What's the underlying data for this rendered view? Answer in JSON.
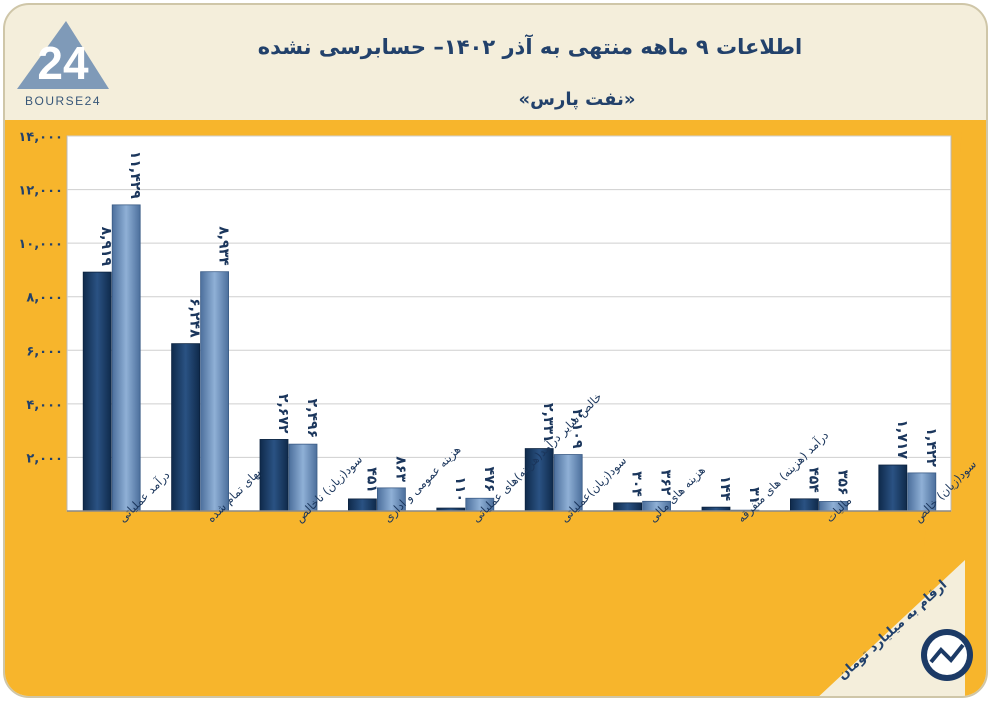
{
  "header": {
    "title": "اطلاعات ۹ ماهه منتهی به آذر ۱۴۰۲– حسابرسی نشده",
    "subtitle": "«نفت پارس»",
    "logo_text": "BOURSE24",
    "logo_mark": "24",
    "footnote": "ارقام به میلیارد تومان"
  },
  "colors": {
    "plot_background": "#f7b52c",
    "series_dark": "#173a63",
    "series_light": "#6e8fb9",
    "text": "#22416b"
  },
  "chart_data": {
    "type": "bar",
    "categories": [
      "درآمد عملیاتی",
      "بهای تمام شده",
      "سود(زیان) ناخالص",
      "هزینه عمومی و اداری",
      "خالص سایر درآمد(هزینه)های عملیاتی",
      "سود(زیان)عملیاتی",
      "هزینه های مالی",
      "درآمد (هزینه) های متفرقه",
      "مالیات",
      "سود(زیان) خالص"
    ],
    "series": [
      {
        "values": [
          8919,
          6248,
          2672,
          451,
          110,
          2331,
          304,
          144,
          454,
          1717
        ],
        "labels": [
          "۸,۹۱۹",
          "۶,۲۴۸",
          "۲,۶۷۲",
          "۴۵۱",
          "۱۱۰",
          "۲,۳۳۱",
          "۳۰۴",
          "۱۴۴",
          "۴۵۴",
          "۱,۷۱۷"
        ]
      },
      {
        "values": [
          11429,
          8934,
          2496,
          863,
          476,
          2109,
          362,
          31,
          356,
          1422
        ],
        "labels": [
          "۱۱,۴۲۹",
          "۸,۹۳۴",
          "۲,۴۹۶",
          "۸۶۳",
          "۴۷۶",
          "۲,۱۰۹",
          "۳۶۲",
          "۳۱",
          "۳۵۶",
          "۱,۴۲۲"
        ]
      }
    ],
    "yticks": [
      0,
      2000,
      4000,
      6000,
      8000,
      10000,
      12000,
      14000
    ],
    "ytick_labels": [
      "",
      "۲,۰۰۰",
      "۴,۰۰۰",
      "۶,۰۰۰",
      "۸,۰۰۰",
      "۱۰,۰۰۰",
      "۱۲,۰۰۰",
      "۱۴,۰۰۰"
    ],
    "ylim": [
      0,
      14000
    ],
    "grid": true,
    "legend": "none"
  }
}
